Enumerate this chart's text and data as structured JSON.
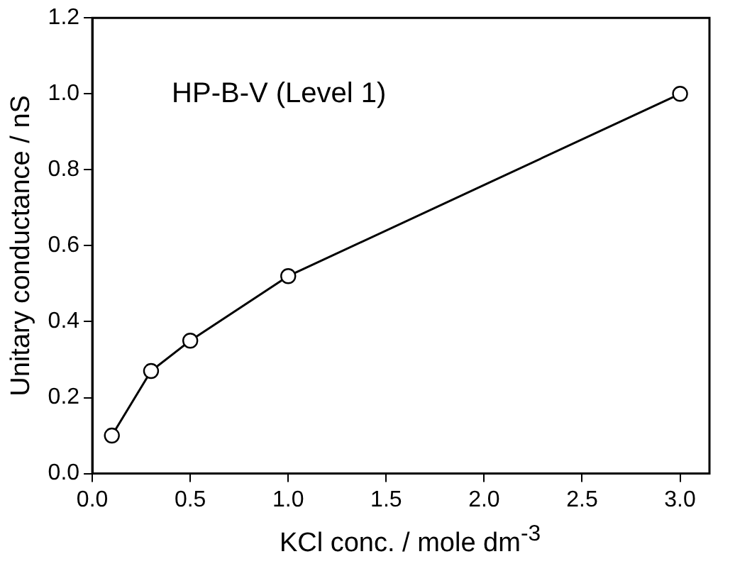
{
  "chart_data": {
    "type": "line",
    "xlabel": "KCl conc. / mole dm$^{-3}$",
    "ylabel": "Unitary conductance / nS",
    "x": [
      0.1,
      0.3,
      0.5,
      1.0,
      3.0
    ],
    "series": [
      {
        "color": "#000000",
        "values": [
          0.1,
          0.27,
          0.35,
          0.52,
          1.0
        ]
      }
    ],
    "xlim": [
      0,
      3.15
    ],
    "xticks": [
      {
        "value": 0,
        "label": "0.0"
      },
      {
        "value": 0.5,
        "label": "0.5"
      },
      {
        "value": 1,
        "label": "1.0"
      },
      {
        "value": 1.5,
        "label": "1.5"
      },
      {
        "value": 2,
        "label": "2.0"
      },
      {
        "value": 2.5,
        "label": "2.5"
      },
      {
        "value": 3,
        "label": "3.0"
      }
    ],
    "ylim": [
      0,
      1.2
    ],
    "yticks": [
      {
        "value": 0,
        "label": "0.0"
      },
      {
        "value": 0.2,
        "label": "0.2"
      },
      {
        "value": 0.4,
        "label": "0.4"
      },
      {
        "value": 0.6,
        "label": "0.6"
      },
      {
        "value": 0.8,
        "label": "0.8"
      },
      {
        "value": 1,
        "label": "1.0"
      },
      {
        "value": 1.2,
        "label": "1.2"
      }
    ],
    "annotations": [
      "HP-B-V (Level 1)"
    ],
    "grid": false,
    "legend": false,
    "marker": "circle",
    "line_style": "solid"
  }
}
